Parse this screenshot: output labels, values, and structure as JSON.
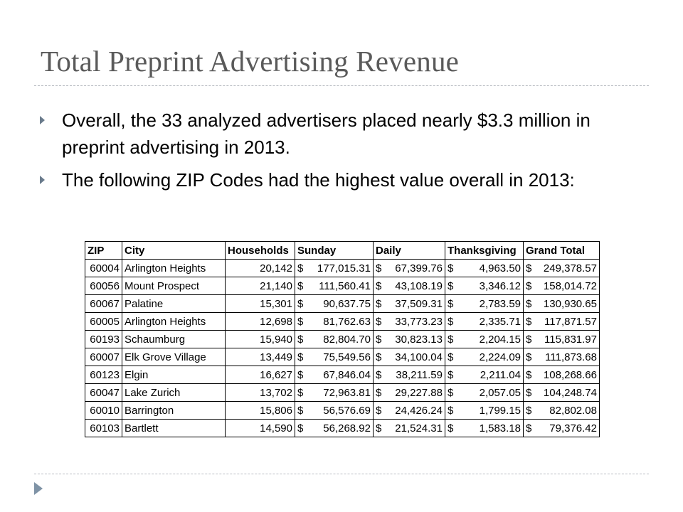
{
  "slide": {
    "title": "Total Preprint Advertising Revenue",
    "bullets": [
      "Overall, the 33 analyzed advertisers placed nearly $3.3 million in preprint advertising in 2013.",
      "The following ZIP Codes had the highest value overall in 2013:"
    ]
  },
  "table": {
    "headers": [
      "ZIP",
      "City",
      "Households",
      "Sunday",
      "Daily",
      "Thanksgiving",
      "Grand Total"
    ],
    "rows": [
      {
        "zip": "60004",
        "city": "Arlington Heights",
        "households": "20,142",
        "sunday": "177,015.31",
        "daily": "67,399.76",
        "thanksgiving": "4,963.50",
        "total": "249,378.57"
      },
      {
        "zip": "60056",
        "city": "Mount Prospect",
        "households": "21,140",
        "sunday": "111,560.41",
        "daily": "43,108.19",
        "thanksgiving": "3,346.12",
        "total": "158,014.72"
      },
      {
        "zip": "60067",
        "city": "Palatine",
        "households": "15,301",
        "sunday": "90,637.75",
        "daily": "37,509.31",
        "thanksgiving": "2,783.59",
        "total": "130,930.65"
      },
      {
        "zip": "60005",
        "city": "Arlington Heights",
        "households": "12,698",
        "sunday": "81,762.63",
        "daily": "33,773.23",
        "thanksgiving": "2,335.71",
        "total": "117,871.57"
      },
      {
        "zip": "60193",
        "city": "Schaumburg",
        "households": "15,940",
        "sunday": "82,804.70",
        "daily": "30,823.13",
        "thanksgiving": "2,204.15",
        "total": "115,831.97"
      },
      {
        "zip": "60007",
        "city": "Elk Grove Village",
        "households": "13,449",
        "sunday": "75,549.56",
        "daily": "34,100.04",
        "thanksgiving": "2,224.09",
        "total": "111,873.68"
      },
      {
        "zip": "60123",
        "city": "Elgin",
        "households": "16,627",
        "sunday": "67,846.04",
        "daily": "38,211.59",
        "thanksgiving": "2,211.04",
        "total": "108,268.66"
      },
      {
        "zip": "60047",
        "city": "Lake Zurich",
        "households": "13,702",
        "sunday": "72,963.81",
        "daily": "29,227.88",
        "thanksgiving": "2,057.05",
        "total": "104,248.74"
      },
      {
        "zip": "60010",
        "city": "Barrington",
        "households": "15,806",
        "sunday": "56,576.69",
        "daily": "24,426.24",
        "thanksgiving": "1,799.15",
        "total": "82,802.08"
      },
      {
        "zip": "60103",
        "city": "Bartlett",
        "households": "14,590",
        "sunday": "56,268.92",
        "daily": "21,524.31",
        "thanksgiving": "1,583.18",
        "total": "79,376.42"
      }
    ]
  },
  "ui": {
    "accent_color": "#6a7b8c",
    "currency_symbol": "$",
    "icons": [
      "bullet-triangle-icon",
      "next-slide-arrow-icon"
    ]
  }
}
